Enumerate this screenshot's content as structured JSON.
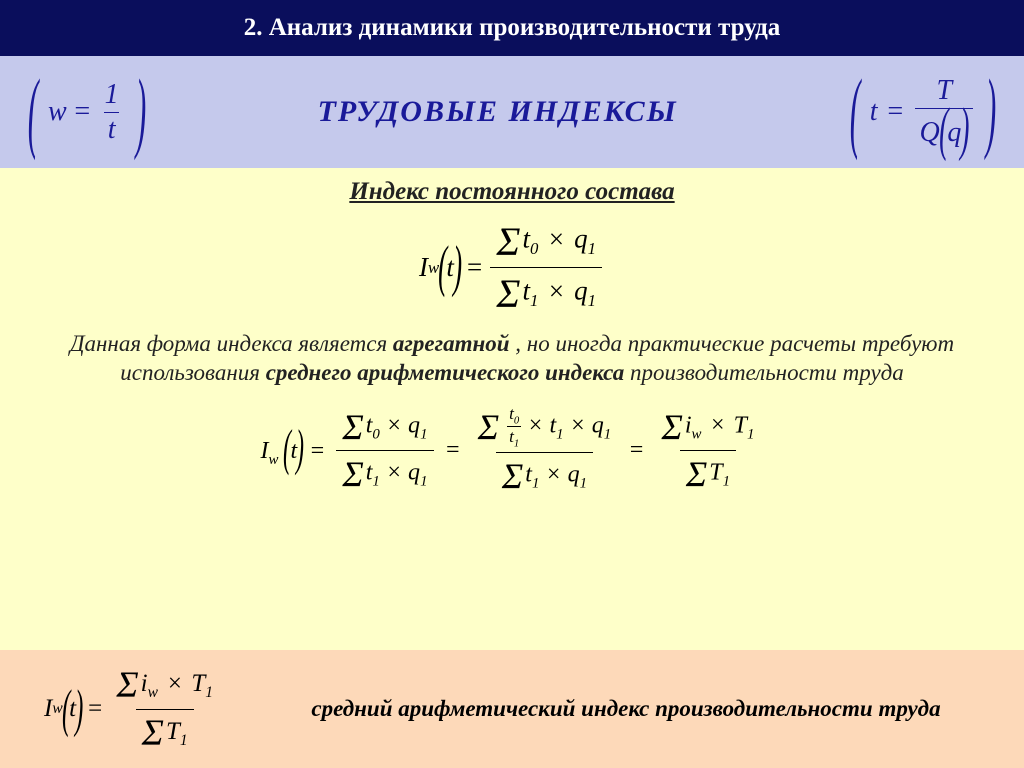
{
  "header": {
    "title": "2. Анализ динамики производительности труда"
  },
  "band1": {
    "title": "ТРУДОВЫЕ ИНДЕКСЫ",
    "left_formula": {
      "lhs": "w",
      "num": "1",
      "den": "t"
    },
    "right_formula": {
      "lhs": "t",
      "num": "T",
      "den_outer": "Q",
      "den_inner": "q"
    }
  },
  "band2": {
    "subtitle": "Индекс постоянного состава",
    "formula1": {
      "lhs_base": "I",
      "lhs_sub": "w",
      "arg": "t",
      "num": {
        "sym": "Σ",
        "a": "t",
        "asub": "0",
        "op": "×",
        "b": "q",
        "bsub": "1"
      },
      "den": {
        "sym": "Σ",
        "a": "t",
        "asub": "1",
        "op": "×",
        "b": "q",
        "bsub": "1"
      }
    },
    "paragraph_parts": {
      "p1": "Данная форма индекса является ",
      "p2": "агрегатной",
      "p3": " , но иногда практические расчеты требуют использования ",
      "p4": "среднего арифметического индекса",
      "p5": " производительности труда"
    },
    "chain": {
      "part3": {
        "num": {
          "sym": "Σ",
          "a": "i",
          "asub": "w",
          "op": "×",
          "b": "T",
          "bsub": "1"
        },
        "den": {
          "sym": "Σ",
          "a": "T",
          "asub": "1"
        }
      }
    }
  },
  "band3": {
    "text": "средний арифметический индекс производительности труда",
    "formula": {
      "lhs_base": "I",
      "lhs_sub": "w",
      "arg": "t",
      "num": {
        "sym": "Σ",
        "a": "i",
        "asub": "w",
        "op": "×",
        "b": "T",
        "bsub": "1"
      },
      "den": {
        "sym": "Σ",
        "a": "T",
        "asub": "1"
      }
    }
  },
  "colors": {
    "header_bg": "#0a0e5c",
    "band1_bg": "#c5c9ec",
    "band2_bg": "#feffc9",
    "band3_bg": "#fdd9b9",
    "accent": "#1a1a99"
  }
}
